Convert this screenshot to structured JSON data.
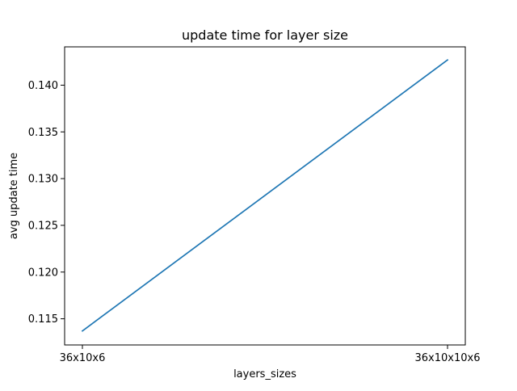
{
  "chart_data": {
    "type": "line",
    "title": "update time for layer size",
    "xlabel": "layers_sizes",
    "ylabel": "avg update time",
    "categories": [
      "36x10x6",
      "36x10x10x6"
    ],
    "series": [
      {
        "values": [
          0.1137,
          0.1427
        ],
        "color": "#1f77b4"
      }
    ],
    "ylim": [
      0.1122,
      0.1441
    ],
    "yticks": [
      0.115,
      0.12,
      0.125,
      0.13,
      0.135,
      0.14
    ],
    "ytick_labels": [
      "0.115",
      "0.120",
      "0.125",
      "0.130",
      "0.135",
      "0.140"
    ],
    "grid": false,
    "legend": "none"
  }
}
